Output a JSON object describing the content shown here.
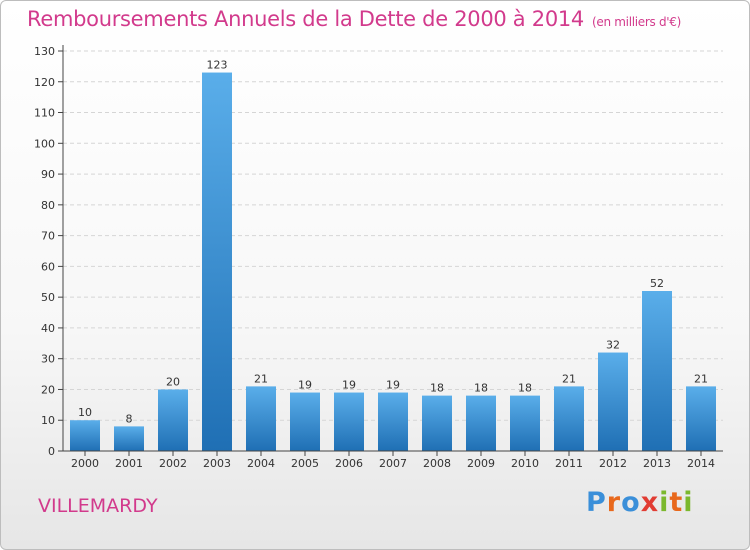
{
  "title": "Remboursements Annuels de la Dette de 2000 à 2014",
  "unit": "(en milliers d'€)",
  "commune": "VILLEMARDY",
  "logo": {
    "letters": [
      {
        "char": "P",
        "color": "#3a8fd9"
      },
      {
        "char": "r",
        "color": "#e8681c"
      },
      {
        "char": "o",
        "color": "#3a8fd9"
      },
      {
        "char": "x",
        "color": "#e13c33"
      },
      {
        "char": "i",
        "color": "#7bb82d"
      },
      {
        "char": "t",
        "color": "#e8681c"
      },
      {
        "char": "i",
        "color": "#7bb82d"
      }
    ]
  },
  "colors": {
    "title": "#d23a8c",
    "bar_top": "#5aaeea",
    "bar_bottom": "#1f6fb4",
    "grid": "#d5d5d5"
  },
  "chart_data": {
    "type": "bar",
    "categories": [
      "2000",
      "2001",
      "2002",
      "2003",
      "2004",
      "2005",
      "2006",
      "2007",
      "2008",
      "2009",
      "2010",
      "2011",
      "2012",
      "2013",
      "2014"
    ],
    "values": [
      10,
      8,
      20,
      123,
      21,
      19,
      19,
      19,
      18,
      18,
      18,
      21,
      32,
      52,
      21
    ],
    "ylim": [
      0,
      130
    ],
    "yticks": [
      0,
      10,
      20,
      30,
      40,
      50,
      60,
      70,
      80,
      90,
      100,
      110,
      120,
      130
    ],
    "grid": true,
    "data_labels": true
  }
}
